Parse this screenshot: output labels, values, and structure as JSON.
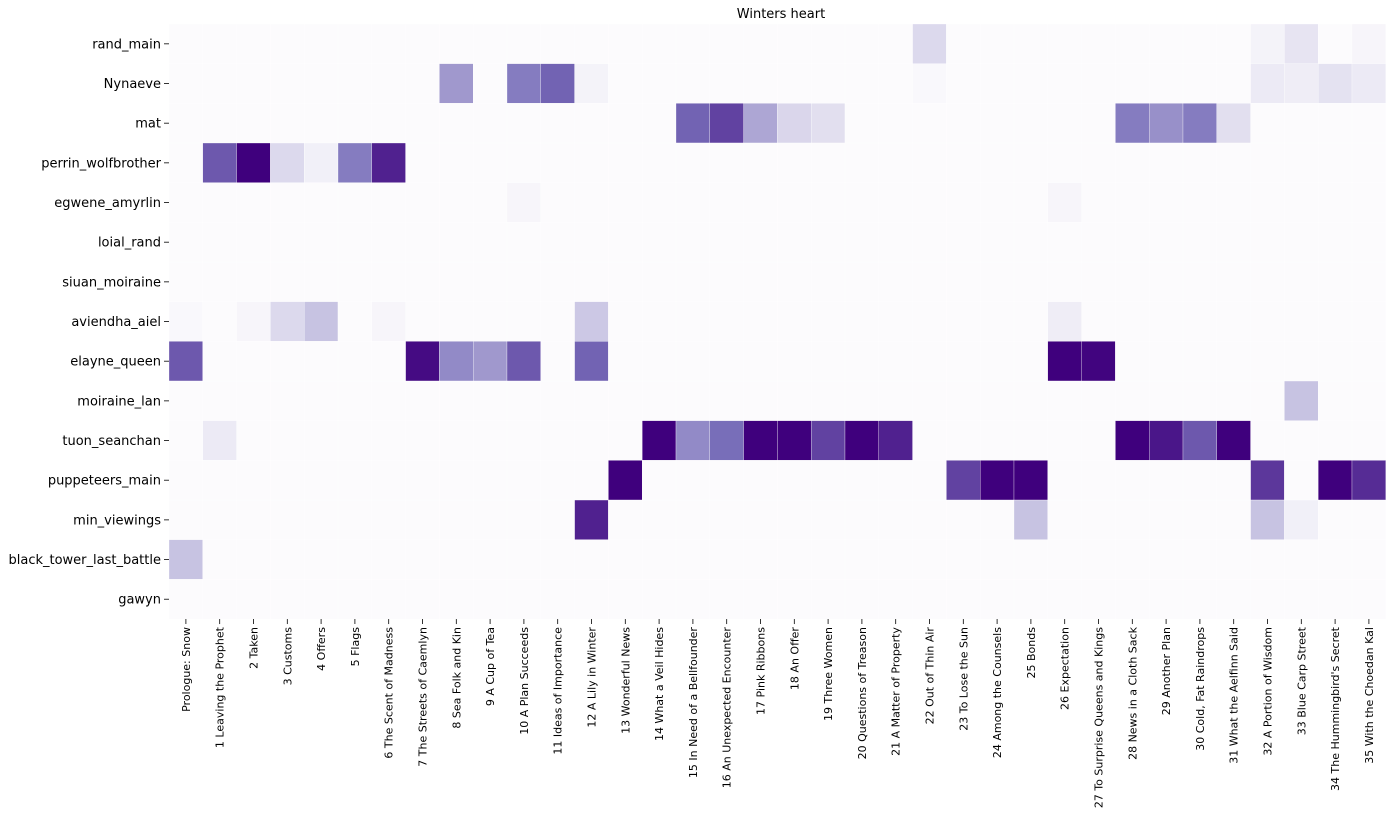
{
  "chart_data": {
    "type": "heatmap",
    "title": "Winters heart",
    "xlabel": "",
    "ylabel": "",
    "color_scale": {
      "low": "#fcfbfd",
      "high": "#3f007d",
      "min": 0,
      "max": 1
    },
    "grid": false,
    "legend": "none",
    "rows": [
      "rand_main",
      "Nynaeve",
      "mat",
      "perrin_wolfbrother",
      "egwene_amyrlin",
      "loial_rand",
      "siuan_moiraine",
      "aviendha_aiel",
      "elayne_queen",
      "moiraine_lan",
      "tuon_seanchan",
      "puppeteers_main",
      "min_viewings",
      "black_tower_last_battle",
      "gawyn"
    ],
    "columns": [
      "Prologue: Snow",
      "1 Leaving the Prophet",
      "2 Taken",
      "3 Customs",
      "4 Offers",
      "5 Flags",
      "6 The Scent of Madness",
      "7 The Streets of Caemlyn",
      "8 Sea Folk and Kin",
      "9 A Cup of Tea",
      "10 A Plan Succeeds",
      "11 Ideas of Importance",
      "12 A Lily in Winter",
      "13 Wonderful News",
      "14 What a Veil Hides",
      "15 In Need of a Bellfounder",
      "16 An Unexpected Encounter",
      "17 Pink Ribbons",
      "18 An Offer",
      "19 Three Women",
      "20 Questions of Treason",
      "21 A Matter of Property",
      "22 Out of Thin Air",
      "23 To Lose the Sun",
      "24 Among the Counsels",
      "25 Bonds",
      "26 Expectation",
      "27 To Surprise Queens and Kings",
      "28 News in a Cloth Sack",
      "29 Another Plan",
      "30 Cold, Fat Raindrops",
      "31 What the Aelfinn Said",
      "32 A Portion of Wisdom",
      "33 Blue Carp Street",
      "34 The Hummingbird's Secret",
      "35 With the Choedan Kal"
    ],
    "values": [
      [
        0,
        0,
        0,
        0,
        0,
        0,
        0,
        0,
        0,
        0,
        0,
        0,
        0,
        0,
        0,
        0,
        0,
        0,
        0,
        0,
        0,
        0,
        0.12,
        0,
        0,
        0,
        0,
        0,
        0,
        0,
        0,
        0,
        0.03,
        0.08,
        0,
        0.02
      ],
      [
        0,
        0,
        0,
        0,
        0,
        0,
        0,
        0,
        0.35,
        0,
        0.45,
        0.55,
        0.03,
        0,
        0,
        0,
        0,
        0,
        0,
        0,
        0,
        0,
        0.01,
        0,
        0,
        0,
        0,
        0,
        0,
        0,
        0,
        0,
        0.06,
        0.05,
        0.09,
        0.06
      ],
      [
        0,
        0,
        0,
        0,
        0,
        0,
        0,
        0,
        0,
        0,
        0,
        0,
        0,
        0,
        0,
        0.55,
        0.7,
        0.3,
        0.13,
        0.1,
        0,
        0,
        0,
        0,
        0,
        0,
        0,
        0,
        0.45,
        0.38,
        0.45,
        0.1,
        0,
        0,
        0,
        0
      ],
      [
        0,
        0.6,
        1,
        0.12,
        0.04,
        0.45,
        0.85,
        0,
        0,
        0,
        0,
        0,
        0,
        0,
        0,
        0,
        0,
        0,
        0,
        0,
        0,
        0,
        0,
        0,
        0,
        0,
        0,
        0,
        0,
        0,
        0,
        0,
        0,
        0,
        0,
        0
      ],
      [
        0,
        0,
        0,
        0,
        0,
        0,
        0,
        0,
        0,
        0,
        0.02,
        0,
        0,
        0,
        0,
        0,
        0,
        0,
        0,
        0,
        0,
        0,
        0,
        0,
        0,
        0,
        0.02,
        0,
        0,
        0,
        0,
        0,
        0,
        0,
        0,
        0
      ],
      [
        0,
        0,
        0,
        0,
        0,
        0,
        0,
        0,
        0,
        0,
        0,
        0,
        0,
        0,
        0,
        0,
        0,
        0,
        0,
        0,
        0,
        0,
        0,
        0,
        0,
        0,
        0,
        0,
        0,
        0,
        0,
        0,
        0,
        0,
        0,
        0
      ],
      [
        0,
        0,
        0,
        0,
        0,
        0,
        0,
        0,
        0,
        0,
        0,
        0,
        0,
        0,
        0,
        0,
        0,
        0,
        0,
        0,
        0,
        0,
        0,
        0,
        0,
        0,
        0,
        0,
        0,
        0,
        0,
        0,
        0,
        0,
        0,
        0
      ],
      [
        0.01,
        0,
        0.02,
        0.12,
        0.2,
        0,
        0.02,
        0,
        0,
        0,
        0,
        0,
        0.18,
        0,
        0,
        0,
        0,
        0,
        0,
        0,
        0,
        0,
        0,
        0,
        0,
        0,
        0.05,
        0,
        0,
        0,
        0,
        0,
        0,
        0,
        0,
        0
      ],
      [
        0.6,
        0,
        0,
        0,
        0,
        0,
        0,
        0.95,
        0.4,
        0.35,
        0.6,
        0,
        0.55,
        0,
        0,
        0,
        0,
        0,
        0,
        0,
        0,
        0,
        0,
        0,
        0,
        0,
        1,
        0.98,
        0,
        0,
        0,
        0,
        0,
        0,
        0,
        0
      ],
      [
        0,
        0,
        0,
        0,
        0,
        0,
        0,
        0,
        0,
        0,
        0,
        0,
        0,
        0,
        0,
        0,
        0,
        0,
        0,
        0,
        0,
        0,
        0,
        0,
        0,
        0,
        0,
        0,
        0,
        0,
        0,
        0,
        0,
        0.2,
        0,
        0
      ],
      [
        0,
        0.06,
        0,
        0,
        0,
        0,
        0,
        0,
        0,
        0,
        0,
        0,
        0,
        0,
        1,
        0.4,
        0.5,
        1,
        1,
        0.7,
        1,
        0.85,
        0,
        0,
        0,
        0,
        0,
        0,
        1,
        0.9,
        0.6,
        1,
        0,
        0,
        0,
        0
      ],
      [
        0,
        0,
        0,
        0,
        0,
        0,
        0,
        0,
        0,
        0,
        0,
        0,
        0,
        1,
        0,
        0,
        0,
        0,
        0,
        0,
        0,
        0,
        0,
        0.7,
        1,
        1,
        0,
        0,
        0,
        0,
        0,
        0,
        0.75,
        0,
        1,
        0.8
      ],
      [
        0,
        0,
        0,
        0,
        0,
        0,
        0,
        0,
        0,
        0,
        0,
        0,
        0.85,
        0,
        0,
        0,
        0,
        0,
        0,
        0,
        0,
        0,
        0,
        0,
        0,
        0.2,
        0,
        0,
        0,
        0,
        0,
        0,
        0.2,
        0.04,
        0,
        0
      ],
      [
        0.2,
        0,
        0,
        0,
        0,
        0,
        0,
        0,
        0,
        0,
        0,
        0,
        0,
        0,
        0,
        0,
        0,
        0,
        0,
        0,
        0,
        0,
        0,
        0,
        0,
        0,
        0,
        0,
        0,
        0,
        0,
        0,
        0,
        0,
        0,
        0
      ],
      [
        0,
        0,
        0,
        0,
        0,
        0,
        0,
        0,
        0,
        0,
        0,
        0,
        0,
        0,
        0,
        0,
        0,
        0,
        0,
        0,
        0,
        0,
        0,
        0,
        0,
        0,
        0,
        0,
        0,
        0,
        0,
        0,
        0,
        0,
        0,
        0
      ]
    ]
  }
}
